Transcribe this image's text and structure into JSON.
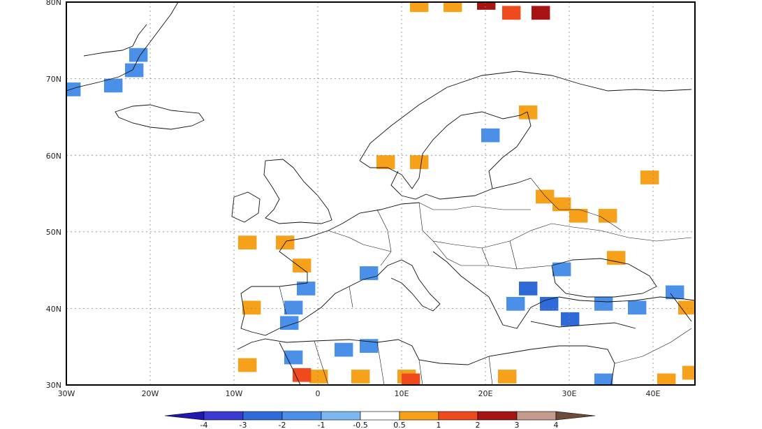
{
  "map": {
    "lat_labels": [
      "80N",
      "70N",
      "60N",
      "50N",
      "40N",
      "30N"
    ],
    "lon_labels": [
      "30W",
      "20W",
      "10W",
      "0",
      "10E",
      "20E",
      "30E",
      "40E"
    ],
    "lon_range": [
      -30,
      45
    ],
    "lat_range": [
      30,
      80
    ]
  },
  "colorbar": {
    "labels": [
      "-4",
      "-3",
      "-2",
      "-1",
      "-0.5",
      "0.5",
      "1",
      "2",
      "3",
      "4"
    ],
    "colors": [
      "#1e17b0",
      "#3a3ad0",
      "#2f6bd8",
      "#4a90e8",
      "#7cb8f0",
      "#ffffff",
      "#f7a11a",
      "#ef4a1e",
      "#a61414",
      "#c39a8b",
      "#6e4a3a"
    ]
  },
  "anomaly_cells": [
    {
      "lon": -29.5,
      "lat": 68.5,
      "level": 3
    },
    {
      "lon": -24.5,
      "lat": 69.0,
      "level": 3
    },
    {
      "lon": -22.0,
      "lat": 71.0,
      "level": 3
    },
    {
      "lon": -21.5,
      "lat": 73.0,
      "level": 3
    },
    {
      "lon": 12.0,
      "lat": 79.5,
      "level": 6
    },
    {
      "lon": 16.0,
      "lat": 79.5,
      "level": 6
    },
    {
      "lon": 20.0,
      "lat": 79.8,
      "level": 8
    },
    {
      "lon": 23.0,
      "lat": 78.5,
      "level": 7
    },
    {
      "lon": 26.5,
      "lat": 78.5,
      "level": 8
    },
    {
      "lon": 25.0,
      "lat": 65.5,
      "level": 6
    },
    {
      "lon": 20.5,
      "lat": 62.5,
      "level": 3
    },
    {
      "lon": 8.0,
      "lat": 59.0,
      "level": 6
    },
    {
      "lon": 12.0,
      "lat": 59.0,
      "level": 6
    },
    {
      "lon": 29.0,
      "lat": 53.5,
      "level": 6
    },
    {
      "lon": 31.0,
      "lat": 52.0,
      "level": 6
    },
    {
      "lon": 27.0,
      "lat": 54.5,
      "level": 6
    },
    {
      "lon": 39.5,
      "lat": 57.0,
      "level": 6
    },
    {
      "lon": 34.5,
      "lat": 52.0,
      "level": 6
    },
    {
      "lon": -4.0,
      "lat": 48.5,
      "level": 6
    },
    {
      "lon": -8.5,
      "lat": 48.5,
      "level": 6
    },
    {
      "lon": -2.0,
      "lat": 45.5,
      "level": 6
    },
    {
      "lon": 6.0,
      "lat": 44.5,
      "level": 3
    },
    {
      "lon": -1.5,
      "lat": 42.5,
      "level": 3
    },
    {
      "lon": -8.0,
      "lat": 40.0,
      "level": 6
    },
    {
      "lon": -3.0,
      "lat": 40.0,
      "level": 3
    },
    {
      "lon": -3.5,
      "lat": 38.0,
      "level": 3
    },
    {
      "lon": 25.0,
      "lat": 42.5,
      "level": 2
    },
    {
      "lon": 27.5,
      "lat": 40.5,
      "level": 2
    },
    {
      "lon": 23.5,
      "lat": 40.5,
      "level": 3
    },
    {
      "lon": 29.0,
      "lat": 45.0,
      "level": 3
    },
    {
      "lon": 30.0,
      "lat": 38.5,
      "level": 2
    },
    {
      "lon": 34.0,
      "lat": 40.5,
      "level": 3
    },
    {
      "lon": 38.0,
      "lat": 40.0,
      "level": 3
    },
    {
      "lon": 42.5,
      "lat": 42.0,
      "level": 3
    },
    {
      "lon": 44.0,
      "lat": 40.0,
      "level": 6
    },
    {
      "lon": 35.5,
      "lat": 46.5,
      "level": 6
    },
    {
      "lon": -3.0,
      "lat": 33.5,
      "level": 3
    },
    {
      "lon": 3.0,
      "lat": 34.5,
      "level": 3
    },
    {
      "lon": 6.0,
      "lat": 35.0,
      "level": 3
    },
    {
      "lon": 0.0,
      "lat": 31.0,
      "level": 6
    },
    {
      "lon": 5.0,
      "lat": 31.0,
      "level": 6
    },
    {
      "lon": 10.5,
      "lat": 31.0,
      "level": 6
    },
    {
      "lon": 11.0,
      "lat": 30.5,
      "level": 7
    },
    {
      "lon": -2.0,
      "lat": 31.2,
      "level": 7
    },
    {
      "lon": 22.5,
      "lat": 31.0,
      "level": 6
    },
    {
      "lon": 44.5,
      "lat": 31.5,
      "level": 6
    },
    {
      "lon": -8.5,
      "lat": 32.5,
      "level": 6
    },
    {
      "lon": 34.0,
      "lat": 30.5,
      "level": 3
    },
    {
      "lon": 41.5,
      "lat": 30.5,
      "level": 6
    }
  ]
}
